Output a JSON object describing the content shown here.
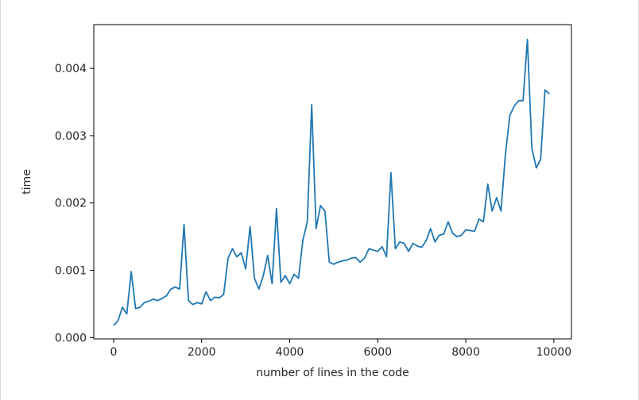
{
  "chart_data": {
    "type": "line",
    "title": "",
    "xlabel": "number of lines in the code",
    "ylabel": "time",
    "xlim": [
      -450,
      10400
    ],
    "ylim": [
      -2e-05,
      0.00465
    ],
    "xticks": [
      0,
      2000,
      4000,
      6000,
      8000,
      10000
    ],
    "xtick_labels": [
      "0",
      "2000",
      "4000",
      "6000",
      "8000",
      "10000"
    ],
    "yticks": [
      0.0,
      0.001,
      0.002,
      0.003,
      0.004
    ],
    "ytick_labels": [
      "0.000",
      "0.001",
      "0.002",
      "0.003",
      "0.004"
    ],
    "grid": false,
    "line_color": "#1f77b4",
    "series": [
      {
        "name": "time",
        "x": [
          0,
          100,
          200,
          300,
          400,
          500,
          600,
          700,
          800,
          900,
          1000,
          1100,
          1200,
          1300,
          1400,
          1500,
          1600,
          1700,
          1800,
          1900,
          2000,
          2100,
          2200,
          2300,
          2400,
          2500,
          2600,
          2700,
          2800,
          2900,
          3000,
          3100,
          3200,
          3300,
          3400,
          3500,
          3600,
          3700,
          3800,
          3900,
          4000,
          4100,
          4200,
          4300,
          4400,
          4500,
          4600,
          4700,
          4800,
          4900,
          5000,
          5100,
          5200,
          5300,
          5400,
          5500,
          5600,
          5700,
          5800,
          5900,
          6000,
          6100,
          6200,
          6300,
          6400,
          6500,
          6600,
          6700,
          6800,
          6900,
          7000,
          7100,
          7200,
          7300,
          7400,
          7500,
          7600,
          7700,
          7800,
          7900,
          8000,
          8100,
          8200,
          8300,
          8400,
          8500,
          8600,
          8700,
          8800,
          8900,
          9000,
          9100,
          9200,
          9300,
          9400,
          9500,
          9600,
          9700,
          9800,
          9900
        ],
        "values": [
          0.00018,
          0.00025,
          0.00045,
          0.00035,
          0.00098,
          0.00043,
          0.00045,
          0.00052,
          0.00054,
          0.00057,
          0.00055,
          0.00058,
          0.00062,
          0.00072,
          0.00075,
          0.00072,
          0.00168,
          0.00055,
          0.00049,
          0.00052,
          0.0005,
          0.00068,
          0.00055,
          0.0006,
          0.00059,
          0.00064,
          0.00118,
          0.00132,
          0.0012,
          0.00126,
          0.00102,
          0.00165,
          0.00088,
          0.00072,
          0.00092,
          0.00122,
          0.0008,
          0.00192,
          0.00082,
          0.00092,
          0.0008,
          0.00094,
          0.00088,
          0.00145,
          0.00172,
          0.00346,
          0.00162,
          0.00196,
          0.00188,
          0.00112,
          0.00109,
          0.00112,
          0.00114,
          0.00115,
          0.00118,
          0.00119,
          0.00112,
          0.00118,
          0.00132,
          0.0013,
          0.00128,
          0.00135,
          0.0012,
          0.00245,
          0.00132,
          0.00142,
          0.0014,
          0.00128,
          0.0014,
          0.00136,
          0.00134,
          0.00144,
          0.00162,
          0.00142,
          0.00152,
          0.00154,
          0.00172,
          0.00155,
          0.0015,
          0.00152,
          0.0016,
          0.00159,
          0.00158,
          0.00176,
          0.00172,
          0.00228,
          0.00188,
          0.00208,
          0.00188,
          0.00272,
          0.0033,
          0.00344,
          0.00352,
          0.00352,
          0.00443,
          0.00282,
          0.00252,
          0.00265,
          0.00368,
          0.00362
        ]
      }
    ]
  }
}
